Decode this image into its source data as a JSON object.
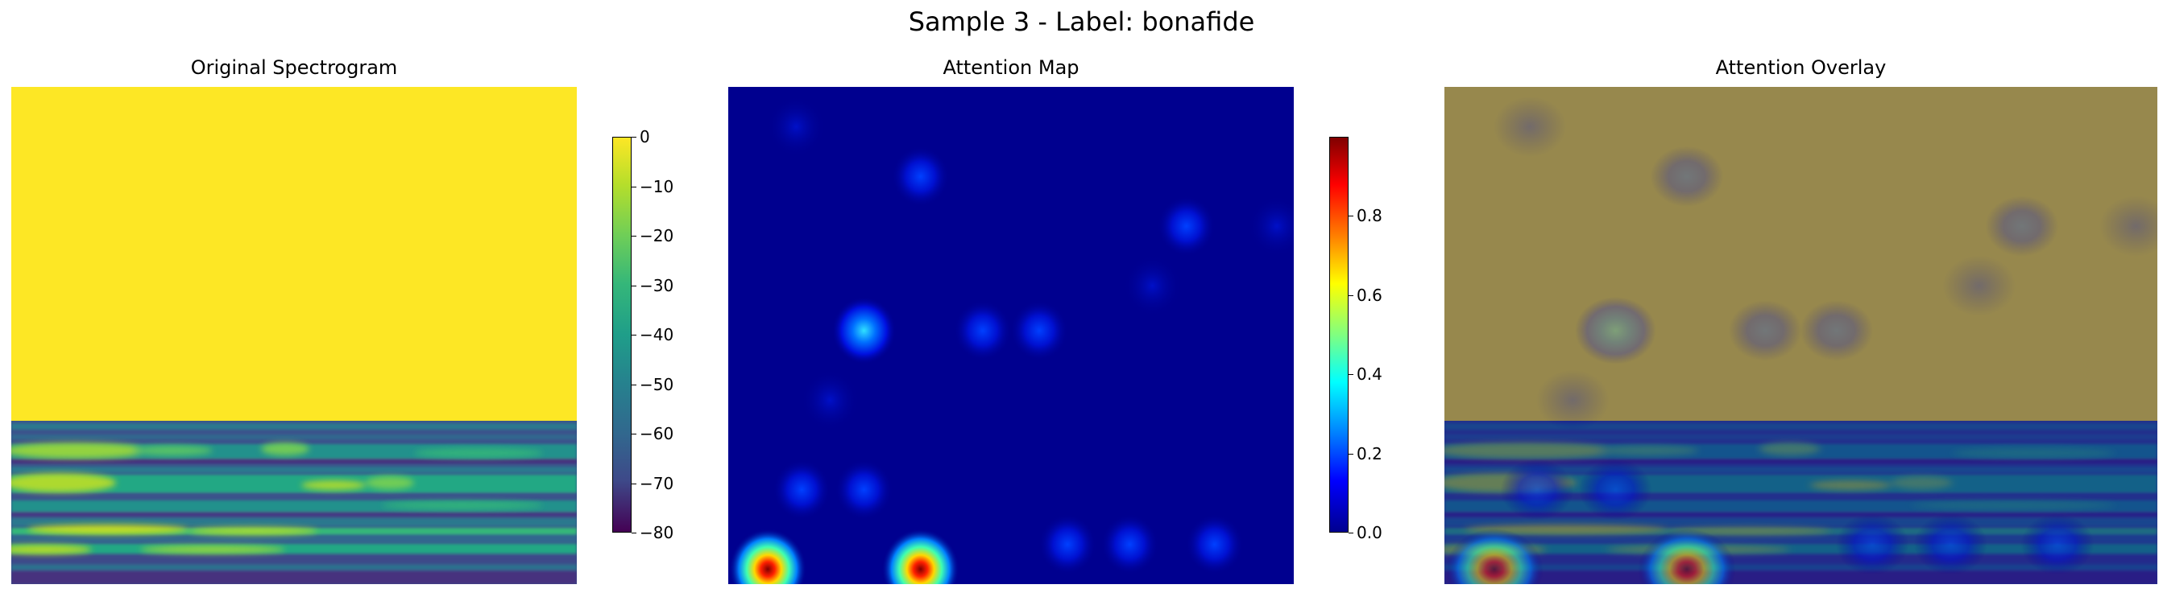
{
  "suptitle": "Sample 3 - Label: bonafide",
  "chart_data": [
    {
      "type": "heatmap",
      "title": "Original Spectrogram",
      "description_values": "upper ~58% of frequency bins saturated at 0 dB (yellow); lower band shows speech harmonics between about -80 and -5 dB",
      "colormap": "viridis",
      "colorbar": {
        "range": [
          -80,
          0
        ],
        "ticks": [
          0,
          -10,
          -20,
          -30,
          -40,
          -50,
          -60,
          -70,
          -80
        ],
        "tick_labels": [
          "0",
          "−10",
          "−20",
          "−30",
          "−40",
          "−50",
          "−60",
          "−70",
          "−80"
        ]
      }
    },
    {
      "type": "heatmap",
      "title": "Attention Map",
      "colormap": "jet",
      "colorbar": {
        "range": [
          0,
          1
        ],
        "ticks": [
          0.0,
          0.2,
          0.4,
          0.6,
          0.8
        ],
        "tick_labels": [
          "0.0",
          "0.2",
          "0.4",
          "0.6",
          "0.8"
        ]
      },
      "hotspots": [
        {
          "col": 0.07,
          "row": 0.97,
          "value": 0.9
        },
        {
          "col": 0.34,
          "row": 0.97,
          "value": 1.0
        },
        {
          "col": 0.24,
          "row": 0.49,
          "value": 0.45
        },
        {
          "col": 0.45,
          "row": 0.49,
          "value": 0.22
        },
        {
          "col": 0.55,
          "row": 0.49,
          "value": 0.22
        },
        {
          "col": 0.34,
          "row": 0.18,
          "value": 0.2
        },
        {
          "col": 0.81,
          "row": 0.28,
          "value": 0.18
        },
        {
          "col": 0.13,
          "row": 0.81,
          "value": 0.2
        },
        {
          "col": 0.24,
          "row": 0.81,
          "value": 0.12
        },
        {
          "col": 0.18,
          "row": 0.63,
          "value": 0.08
        },
        {
          "col": 0.6,
          "row": 0.92,
          "value": 0.12
        },
        {
          "col": 0.71,
          "row": 0.92,
          "value": 0.12
        },
        {
          "col": 0.86,
          "row": 0.92,
          "value": 0.15
        },
        {
          "col": 0.97,
          "row": 0.28,
          "value": 0.08
        },
        {
          "col": 0.75,
          "row": 0.4,
          "value": 0.06
        },
        {
          "col": 0.12,
          "row": 0.08,
          "value": 0.05
        }
      ]
    },
    {
      "type": "heatmap",
      "title": "Attention Overlay",
      "description_values": "spectrogram blended with attention map"
    }
  ]
}
